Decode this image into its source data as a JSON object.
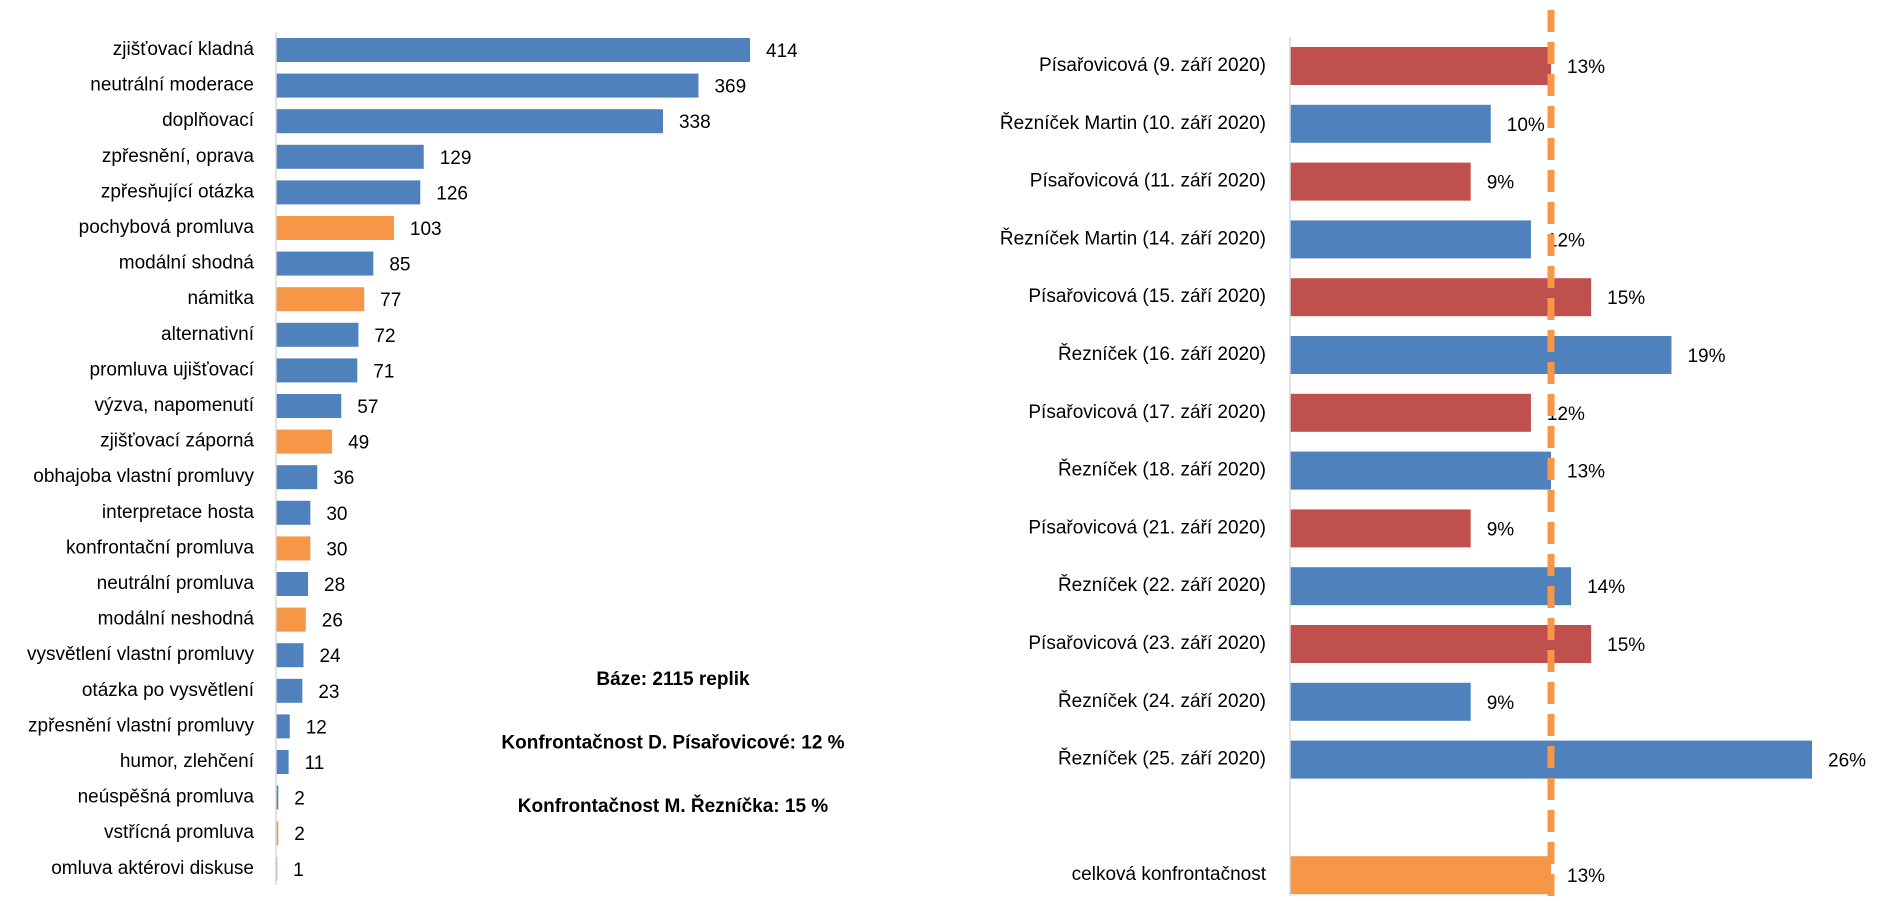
{
  "chart_data": [
    {
      "type": "bar",
      "orientation": "horizontal",
      "categories": [
        "zjišťovací kladná",
        "neutrální moderace",
        "doplňovací",
        "zpřesnění, oprava",
        "zpřesňující otázka",
        "pochybová promluva",
        "modální shodná",
        "námitka",
        "alternativní",
        "promluva ujišťovací",
        "výzva, napomenutí",
        "zjišťovací záporná",
        "obhajoba vlastní promluvy",
        "interpretace hosta",
        "konfrontační promluva",
        "neutrální promluva",
        "modální neshodná",
        "vysvětlení vlastní promluvy",
        "otázka po vysvětlení",
        "zpřesnění vlastní promluvy",
        "humor, zlehčení",
        "neúspěšná promluva",
        "vstřícná promluva",
        "omluva aktérovi diskuse"
      ],
      "values": [
        414,
        369,
        338,
        129,
        126,
        103,
        85,
        77,
        72,
        71,
        57,
        49,
        36,
        30,
        30,
        28,
        26,
        24,
        23,
        12,
        11,
        2,
        2,
        1
      ],
      "colors": [
        "#4f81bd",
        "#4f81bd",
        "#4f81bd",
        "#4f81bd",
        "#4f81bd",
        "#f79646",
        "#4f81bd",
        "#f79646",
        "#4f81bd",
        "#4f81bd",
        "#4f81bd",
        "#f79646",
        "#4f81bd",
        "#4f81bd",
        "#f79646",
        "#4f81bd",
        "#f79646",
        "#4f81bd",
        "#4f81bd",
        "#4f81bd",
        "#4f81bd",
        "#4f81bd",
        "#f79646",
        "#4f81bd"
      ],
      "xlim": [
        0,
        414
      ],
      "annotations": [
        "Báze: 2115 replik",
        "Konfrontačnost D. Písařovicové: 12 %",
        "Konfrontačnost M. Řezníčka: 15 %"
      ]
    },
    {
      "type": "bar",
      "orientation": "horizontal",
      "categories": [
        "Písařovicová (9. září 2020)",
        "Řezníček Martin (10. září 2020)",
        "Písařovicová (11. září 2020)",
        "Řezníček Martin (14. září 2020)",
        "Písařovicová (15. září 2020)",
        "Řezníček (16. září 2020)",
        "Písařovicová (17. září 2020)",
        "Řezníček (18. září 2020)",
        "Písařovicová (21. září 2020)",
        "Řezníček (22. září 2020)",
        "Písařovicová (23. září 2020)",
        "Řezníček (24. září 2020)",
        "Řezníček (25. září 2020)",
        null,
        "celková konfrontačnost"
      ],
      "values": [
        13,
        10,
        9,
        12,
        15,
        19,
        12,
        13,
        9,
        14,
        15,
        9,
        26,
        null,
        13
      ],
      "value_labels": [
        "13%",
        "10%",
        "9%",
        "12%",
        "15%",
        "19%",
        "12%",
        "13%",
        "9%",
        "14%",
        "15%",
        "9%",
        "26%",
        null,
        "13%"
      ],
      "colors": [
        "#c0504d",
        "#4f81bd",
        "#c0504d",
        "#4f81bd",
        "#c0504d",
        "#4f81bd",
        "#c0504d",
        "#4f81bd",
        "#c0504d",
        "#4f81bd",
        "#c0504d",
        "#4f81bd",
        "#4f81bd",
        null,
        "#f79646"
      ],
      "xlim": [
        0,
        26
      ],
      "reference_line": {
        "value": 13,
        "color": "#f79646",
        "style": "dashed"
      }
    }
  ]
}
